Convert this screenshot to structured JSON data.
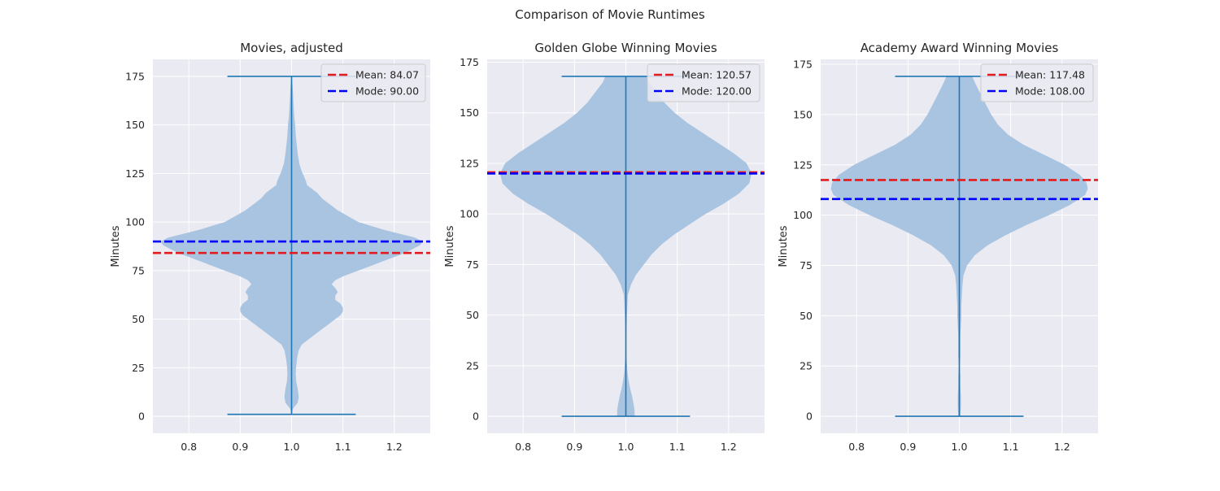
{
  "figure": {
    "suptitle": "Comparison of Movie Runtimes",
    "background": "#ffffff",
    "panel_background": "#eaeaf2",
    "grid_color": "#ffffff"
  },
  "chart_data": [
    {
      "type": "violin",
      "title": "Movies, adjusted",
      "xlabel": "",
      "ylabel": "Minutes",
      "xlim": [
        0.73,
        1.27
      ],
      "ylim": [
        -8.75,
        183.75
      ],
      "xticks": [
        "0.8",
        "0.9",
        "1.0",
        "1.1",
        "1.2"
      ],
      "xtick_values": [
        0.8,
        0.9,
        1.0,
        1.1,
        1.2
      ],
      "yticks": [
        "0",
        "25",
        "50",
        "75",
        "100",
        "125",
        "150",
        "175"
      ],
      "ytick_values": [
        0,
        25,
        50,
        75,
        100,
        125,
        150,
        175
      ],
      "grid": true,
      "violin": {
        "position": 1.0,
        "min": 1,
        "max": 175,
        "cap_half_width": 0.125,
        "color": "#a9c4e1",
        "line_color": "#1f77b4",
        "profile": [
          [
            1,
            0
          ],
          [
            4,
            0.003
          ],
          [
            7,
            0.012
          ],
          [
            10,
            0.014
          ],
          [
            14,
            0.012
          ],
          [
            18,
            0.009
          ],
          [
            22,
            0.008
          ],
          [
            26,
            0.009
          ],
          [
            30,
            0.011
          ],
          [
            34,
            0.014
          ],
          [
            37,
            0.02
          ],
          [
            40,
            0.035
          ],
          [
            43,
            0.05
          ],
          [
            46,
            0.065
          ],
          [
            48,
            0.075
          ],
          [
            50,
            0.085
          ],
          [
            52,
            0.095
          ],
          [
            54,
            0.1
          ],
          [
            56,
            0.1
          ],
          [
            58,
            0.095
          ],
          [
            60,
            0.085
          ],
          [
            62,
            0.085
          ],
          [
            64,
            0.09
          ],
          [
            66,
            0.085
          ],
          [
            68,
            0.078
          ],
          [
            70,
            0.085
          ],
          [
            72,
            0.1
          ],
          [
            74,
            0.12
          ],
          [
            76,
            0.14
          ],
          [
            78,
            0.16
          ],
          [
            80,
            0.18
          ],
          [
            82,
            0.2
          ],
          [
            84,
            0.22
          ],
          [
            86,
            0.235
          ],
          [
            88,
            0.25
          ],
          [
            90,
            0.255
          ],
          [
            92,
            0.24
          ],
          [
            94,
            0.21
          ],
          [
            96,
            0.18
          ],
          [
            98,
            0.155
          ],
          [
            100,
            0.13
          ],
          [
            103,
            0.11
          ],
          [
            106,
            0.09
          ],
          [
            109,
            0.075
          ],
          [
            112,
            0.06
          ],
          [
            115,
            0.05
          ],
          [
            117,
            0.04
          ],
          [
            119,
            0.03
          ],
          [
            121,
            0.028
          ],
          [
            123,
            0.025
          ],
          [
            126,
            0.02
          ],
          [
            130,
            0.015
          ],
          [
            135,
            0.012
          ],
          [
            140,
            0.01
          ],
          [
            145,
            0.008
          ],
          [
            150,
            0.007
          ],
          [
            155,
            0.005
          ],
          [
            160,
            0.004
          ],
          [
            165,
            0.003
          ],
          [
            170,
            0.002
          ],
          [
            175,
            0
          ]
        ]
      },
      "lines": [
        {
          "label": "Mean: 84.07",
          "y": 84.07,
          "color": "#e41a1c"
        },
        {
          "label": "Mode: 90.00",
          "y": 90.0,
          "color": "#0000ff"
        }
      ],
      "legend_position": "upper right"
    },
    {
      "type": "violin",
      "title": "Golden Globe Winning Movies",
      "xlabel": "",
      "ylabel": "Minutes",
      "xlim": [
        0.73,
        1.27
      ],
      "ylim": [
        -8.4,
        176.4
      ],
      "xticks": [
        "0.8",
        "0.9",
        "1.0",
        "1.1",
        "1.2"
      ],
      "xtick_values": [
        0.8,
        0.9,
        1.0,
        1.1,
        1.2
      ],
      "yticks": [
        "0",
        "25",
        "50",
        "75",
        "100",
        "125",
        "150",
        "175"
      ],
      "ytick_values": [
        0,
        25,
        50,
        75,
        100,
        125,
        150,
        175
      ],
      "grid": true,
      "violin": {
        "position": 1.0,
        "min": 0,
        "max": 168,
        "cap_half_width": 0.125,
        "color": "#a9c4e1",
        "line_color": "#1f77b4",
        "profile": [
          [
            0,
            0.017
          ],
          [
            3,
            0.017
          ],
          [
            6,
            0.015
          ],
          [
            10,
            0.012
          ],
          [
            14,
            0.008
          ],
          [
            18,
            0.005
          ],
          [
            22,
            0.003
          ],
          [
            26,
            0.002
          ],
          [
            30,
            0.001
          ],
          [
            40,
            0.001
          ],
          [
            50,
            0.002
          ],
          [
            55,
            0.003
          ],
          [
            60,
            0.004
          ],
          [
            65,
            0.01
          ],
          [
            70,
            0.02
          ],
          [
            75,
            0.035
          ],
          [
            80,
            0.05
          ],
          [
            85,
            0.07
          ],
          [
            90,
            0.095
          ],
          [
            95,
            0.125
          ],
          [
            100,
            0.155
          ],
          [
            105,
            0.19
          ],
          [
            110,
            0.22
          ],
          [
            115,
            0.24
          ],
          [
            120,
            0.245
          ],
          [
            125,
            0.235
          ],
          [
            130,
            0.21
          ],
          [
            135,
            0.18
          ],
          [
            140,
            0.15
          ],
          [
            145,
            0.12
          ],
          [
            150,
            0.095
          ],
          [
            155,
            0.075
          ],
          [
            160,
            0.06
          ],
          [
            165,
            0.045
          ],
          [
            168,
            0.04
          ]
        ]
      },
      "lines": [
        {
          "label": "Mean: 120.57",
          "y": 120.57,
          "color": "#e41a1c"
        },
        {
          "label": "Mode: 120.00",
          "y": 120.0,
          "color": "#0000ff"
        }
      ],
      "legend_position": "upper right"
    },
    {
      "type": "violin",
      "title": "Academy Award Winning Movies",
      "xlabel": "",
      "ylabel": "Minutes",
      "xlim": [
        0.73,
        1.27
      ],
      "ylim": [
        -8.45,
        177.45
      ],
      "xticks": [
        "0.8",
        "0.9",
        "1.0",
        "1.1",
        "1.2"
      ],
      "xtick_values": [
        0.8,
        0.9,
        1.0,
        1.1,
        1.2
      ],
      "yticks": [
        "0",
        "25",
        "50",
        "75",
        "100",
        "125",
        "150",
        "175"
      ],
      "ytick_values": [
        0,
        25,
        50,
        75,
        100,
        125,
        150,
        175
      ],
      "grid": true,
      "violin": {
        "position": 1.0,
        "min": 0,
        "max": 169,
        "cap_half_width": 0.125,
        "color": "#a9c4e1",
        "line_color": "#1f77b4",
        "profile": [
          [
            0,
            0.002
          ],
          [
            5,
            0.003
          ],
          [
            10,
            0.003
          ],
          [
            15,
            0.002
          ],
          [
            20,
            0.002
          ],
          [
            25,
            0.001
          ],
          [
            30,
            0.002
          ],
          [
            40,
            0.002
          ],
          [
            45,
            0.003
          ],
          [
            50,
            0.004
          ],
          [
            55,
            0.004
          ],
          [
            60,
            0.005
          ],
          [
            65,
            0.006
          ],
          [
            70,
            0.008
          ],
          [
            75,
            0.015
          ],
          [
            80,
            0.03
          ],
          [
            85,
            0.055
          ],
          [
            90,
            0.09
          ],
          [
            95,
            0.13
          ],
          [
            100,
            0.175
          ],
          [
            105,
            0.215
          ],
          [
            110,
            0.245
          ],
          [
            113,
            0.25
          ],
          [
            116,
            0.248
          ],
          [
            120,
            0.235
          ],
          [
            125,
            0.205
          ],
          [
            130,
            0.165
          ],
          [
            135,
            0.125
          ],
          [
            140,
            0.095
          ],
          [
            145,
            0.075
          ],
          [
            150,
            0.062
          ],
          [
            155,
            0.052
          ],
          [
            160,
            0.042
          ],
          [
            165,
            0.032
          ],
          [
            169,
            0.025
          ]
        ]
      },
      "lines": [
        {
          "label": "Mean: 117.48",
          "y": 117.48,
          "color": "#e41a1c"
        },
        {
          "label": "Mode: 108.00",
          "y": 108.0,
          "color": "#0000ff"
        }
      ],
      "legend_position": "upper right"
    }
  ]
}
